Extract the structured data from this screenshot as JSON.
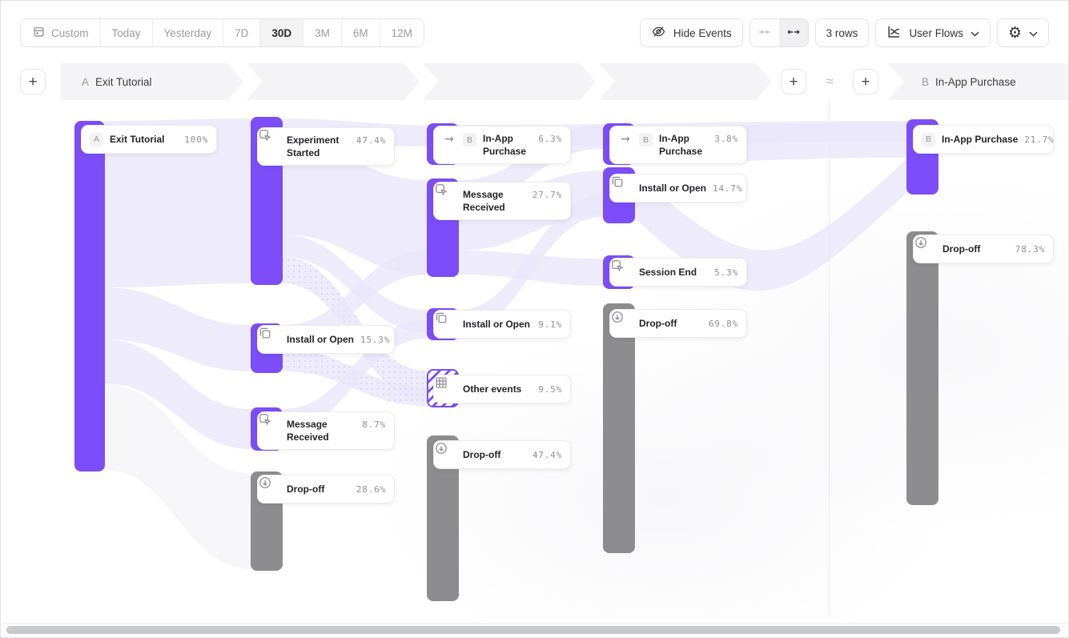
{
  "toolbar": {
    "date_ranges": [
      "Custom",
      "Today",
      "Yesterday",
      "7D",
      "30D",
      "3M",
      "6M",
      "12M"
    ],
    "selected_range": "30D",
    "hide_events_label": "Hide Events",
    "rows_label": "3 rows",
    "view_type_label": "User Flows"
  },
  "header": {
    "section_a_badge": "A",
    "section_a_title": "Exit Tutorial",
    "section_b_badge": "B",
    "section_b_title": "In-App Purchase",
    "break_symbol": "≈",
    "add_step_label": "+"
  },
  "colors": {
    "event_bar": "#7C4DF8",
    "dropoff_bar": "#8D8D90",
    "ribbon": "#E9E5FA",
    "dropoff_ribbon": "#F3F3F6"
  },
  "flow": {
    "columns": [
      {
        "nodes": [
          {
            "badge": "A",
            "label": "Exit Tutorial",
            "pct": "100%",
            "type": "event"
          }
        ]
      },
      {
        "nodes": [
          {
            "icon": "cursor-click-icon",
            "label": "Experiment Started",
            "pct": "47.4%",
            "type": "event"
          },
          {
            "icon": "copy-icon",
            "label": "Install or Open",
            "pct": "15.3%",
            "type": "event"
          },
          {
            "icon": "cursor-click-icon",
            "label": "Message Received",
            "pct": "8.7%",
            "type": "event"
          },
          {
            "icon": "arrow-down-circle-icon",
            "label": "Drop-off",
            "pct": "28.6%",
            "type": "dropoff"
          }
        ]
      },
      {
        "nodes": [
          {
            "icon": "jump-arrow-icon",
            "badge": "B",
            "label": "In-App Purchase",
            "pct": "6.3%",
            "type": "event"
          },
          {
            "icon": "cursor-click-icon",
            "label": "Message Received",
            "pct": "27.7%",
            "type": "event"
          },
          {
            "icon": "copy-icon",
            "label": "Install or Open",
            "pct": "9.1%",
            "type": "event"
          },
          {
            "icon": "grid-icon",
            "label": "Other events",
            "pct": "9.5%",
            "type": "other"
          },
          {
            "icon": "arrow-down-circle-icon",
            "label": "Drop-off",
            "pct": "47.4%",
            "type": "dropoff"
          }
        ]
      },
      {
        "nodes": [
          {
            "icon": "jump-arrow-icon",
            "badge": "B",
            "label": "In-App Purchase",
            "pct": "3.8%",
            "type": "event"
          },
          {
            "icon": "copy-icon",
            "label": "Install or Open",
            "pct": "14.7%",
            "type": "event"
          },
          {
            "icon": "cursor-click-icon",
            "label": "Session End",
            "pct": "5.3%",
            "type": "event"
          },
          {
            "icon": "arrow-down-circle-icon",
            "label": "Drop-off",
            "pct": "69.8%",
            "type": "dropoff"
          }
        ]
      },
      {
        "nodes": [
          {
            "badge": "B",
            "label": "In-App Purchase",
            "pct": "21.7%",
            "type": "event"
          },
          {
            "icon": "arrow-down-circle-icon",
            "label": "Drop-off",
            "pct": "78.3%",
            "type": "dropoff"
          }
        ]
      }
    ]
  }
}
